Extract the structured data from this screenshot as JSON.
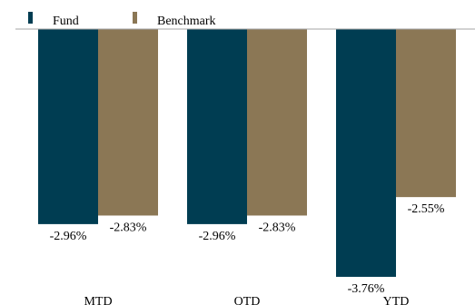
{
  "chart_data": {
    "type": "bar",
    "categories": [
      "MTD",
      "QTD",
      "YTD"
    ],
    "series": [
      {
        "name": "Fund",
        "values": [
          -2.96,
          -2.96,
          -3.76
        ],
        "labels": [
          "-2.96%",
          "-2.96%",
          "-3.76%"
        ],
        "color": "#003d52"
      },
      {
        "name": "Benchmark",
        "values": [
          -2.83,
          -2.83,
          -2.55
        ],
        "labels": [
          "-2.83%",
          "-2.83%",
          "-2.55%"
        ],
        "color": "#8b7755"
      }
    ],
    "title": "",
    "xlabel": "",
    "ylabel": "",
    "ylim": [
      -3.76,
      0
    ],
    "grid": false,
    "legend_position": "top-left",
    "category_axis_position": "bottom",
    "baseline_color": "#a6a6a6"
  }
}
